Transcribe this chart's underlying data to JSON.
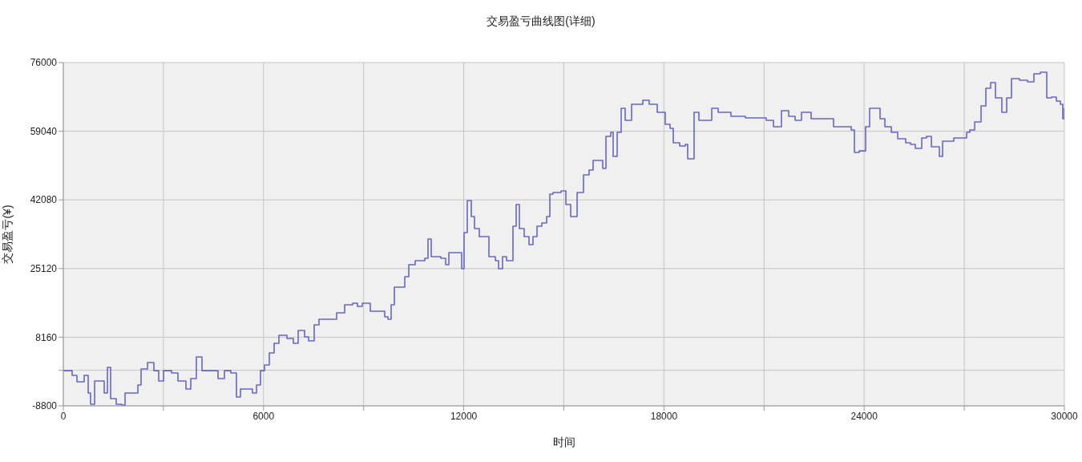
{
  "chart_data": {
    "type": "step",
    "title": "交易盈亏曲线图(详细)",
    "xlabel": "时间",
    "ylabel": "交易盈亏(¥)",
    "xlim": [
      0,
      30000
    ],
    "xticks": [
      0,
      {
        "value": 3000,
        "label": null
      },
      6000,
      {
        "value": 9000,
        "label": null
      },
      12000,
      {
        "value": 15000,
        "label": null
      },
      18000,
      {
        "value": 21000,
        "label": null
      },
      24000,
      {
        "value": 27000,
        "label": null
      },
      30000
    ],
    "ylim": [
      -8800,
      76000
    ],
    "yticks": [
      -8800,
      {
        "value": 0,
        "label": null
      },
      8160,
      25120,
      42080,
      59040,
      76000
    ],
    "grid": true,
    "legend": false,
    "marker": "none",
    "line_style": "solid",
    "series": [
      {
        "color": "#6666cc",
        "x": [
          0,
          264,
          408,
          625,
          745,
          817,
          937,
          1153,
          1225,
          1321,
          1417,
          1585,
          1753,
          1850,
          2138,
          2234,
          2330,
          2522,
          2714,
          2858,
          3003,
          3243,
          3435,
          3675,
          3819,
          3987,
          4155,
          4396,
          4636,
          4828,
          5020,
          5188,
          5308,
          5669,
          5789,
          5909,
          6029,
          6173,
          6317,
          6461,
          6702,
          6894,
          7038,
          7230,
          7350,
          7518,
          7662,
          7999,
          8191,
          8431,
          8671,
          8815,
          8959,
          9199,
          9440,
          9632,
          9728,
          9824,
          9920,
          10112,
          10233,
          10353,
          10545,
          10833,
          10929,
          11025,
          11313,
          11458,
          11554,
          11890,
          11938,
          12010,
          12106,
          12226,
          12322,
          12466,
          12611,
          12755,
          12947,
          13043,
          13163,
          13283,
          13475,
          13571,
          13667,
          13811,
          13956,
          14076,
          14196,
          14340,
          14484,
          14580,
          14676,
          14916,
          15061,
          15205,
          15397,
          15589,
          15757,
          15877,
          16069,
          16165,
          16262,
          16406,
          16478,
          16598,
          16718,
          16838,
          17030,
          17126,
          17318,
          17366,
          17558,
          17798,
          18038,
          18183,
          18279,
          18471,
          18639,
          18711,
          18903,
          19047,
          19240,
          19432,
          19624,
          20008,
          20441,
          20777,
          21065,
          21282,
          21522,
          21738,
          21930,
          22122,
          22411,
          22843,
          23083,
          23323,
          23612,
          23708,
          23852,
          24044,
          24164,
          24332,
          24476,
          24621,
          24813,
          25005,
          25245,
          25389,
          25533,
          25726,
          25870,
          26014,
          26254,
          26350,
          26686,
          26926,
          27071,
          27167,
          27311,
          27503,
          27647,
          27791,
          27935,
          28127,
          28271,
          28415,
          28655,
          28895,
          29087,
          29280,
          29472,
          29616,
          29760,
          29880,
          29952,
          30000
        ],
        "values": [
          -100,
          -1270,
          -2860,
          -1270,
          -5630,
          -8400,
          -2660,
          -2660,
          -5630,
          710,
          -7020,
          -8400,
          -8600,
          -5630,
          -5630,
          -3650,
          310,
          1900,
          -100,
          -2660,
          -100,
          -670,
          -2660,
          -4640,
          -2060,
          3290,
          -100,
          -100,
          -2060,
          -100,
          -670,
          -6620,
          -4640,
          -5630,
          -3650,
          -100,
          1310,
          4280,
          6650,
          8640,
          7850,
          6650,
          9820,
          8240,
          7250,
          11210,
          12600,
          12600,
          14180,
          16160,
          16560,
          15770,
          16560,
          14580,
          14580,
          13190,
          12600,
          16160,
          20520,
          20520,
          23100,
          26070,
          27060,
          27660,
          32410,
          28050,
          27660,
          26070,
          29040,
          29040,
          25080,
          34000,
          41920,
          37960,
          34990,
          33000,
          33000,
          28050,
          27060,
          25080,
          28050,
          27060,
          35580,
          40930,
          34990,
          33000,
          31020,
          33000,
          35580,
          36370,
          37960,
          43510,
          43900,
          44300,
          40930,
          37960,
          43900,
          48260,
          49450,
          51830,
          51830,
          49850,
          57770,
          58760,
          52820,
          58760,
          64710,
          61740,
          65700,
          65700,
          65700,
          66690,
          65700,
          63720,
          60740,
          59750,
          56190,
          55390,
          55790,
          52220,
          63720,
          61740,
          61740,
          64710,
          63720,
          62730,
          62330,
          62330,
          61740,
          60150,
          64110,
          62730,
          61740,
          63720,
          62130,
          62130,
          60150,
          60150,
          59360,
          53810,
          54190,
          60150,
          64710,
          64710,
          62130,
          60150,
          58760,
          57170,
          56190,
          55790,
          54800,
          57380,
          57770,
          55190,
          52820,
          56580,
          57380,
          57380,
          58760,
          59360,
          61340,
          65300,
          69660,
          71050,
          67280,
          63720,
          67280,
          72040,
          71640,
          71240,
          73230,
          73620,
          67280,
          67480,
          66500,
          65700,
          62130,
          64710
        ]
      }
    ]
  }
}
